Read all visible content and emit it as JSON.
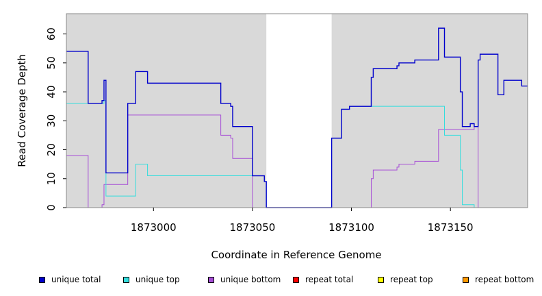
{
  "chart_data": {
    "type": "line",
    "xlabel": "Coordinate in Reference Genome",
    "ylabel": "Read Coverage Depth",
    "xlim": [
      1872956,
      1873189
    ],
    "ylim": [
      0,
      67
    ],
    "xticks": [
      1873000,
      1873050,
      1873100,
      1873150
    ],
    "yticks": [
      0,
      10,
      20,
      30,
      40,
      50,
      60
    ],
    "shaded_regions": [
      [
        1872956,
        1873057
      ],
      [
        1873090,
        1873189
      ]
    ],
    "grid": false,
    "legend_position": "bottom",
    "series": [
      {
        "name": "unique total",
        "color": "#0000cc",
        "steps": [
          [
            1872956,
            54
          ],
          [
            1872967,
            36
          ],
          [
            1872974,
            37
          ],
          [
            1872975,
            44
          ],
          [
            1872976,
            12
          ],
          [
            1872987,
            36
          ],
          [
            1872991,
            47
          ],
          [
            1872997,
            43
          ],
          [
            1873034,
            36
          ],
          [
            1873039,
            35
          ],
          [
            1873040,
            28
          ],
          [
            1873050,
            11
          ],
          [
            1873056,
            9
          ],
          [
            1873057,
            0
          ],
          [
            1873090,
            24
          ],
          [
            1873095,
            34
          ],
          [
            1873099,
            35
          ],
          [
            1873110,
            45
          ],
          [
            1873111,
            48
          ],
          [
            1873123,
            49
          ],
          [
            1873124,
            50
          ],
          [
            1873132,
            51
          ],
          [
            1873144,
            62
          ],
          [
            1873147,
            52
          ],
          [
            1873155,
            40
          ],
          [
            1873156,
            28
          ],
          [
            1873160,
            29
          ],
          [
            1873162,
            28
          ],
          [
            1873164,
            51
          ],
          [
            1873165,
            53
          ],
          [
            1873174,
            39
          ],
          [
            1873177,
            44
          ],
          [
            1873186,
            42
          ],
          [
            1873189,
            42
          ]
        ]
      },
      {
        "name": "unique top",
        "color": "#33dddd",
        "steps": [
          [
            1872956,
            36
          ],
          [
            1872975,
            37
          ],
          [
            1872976,
            4
          ],
          [
            1872991,
            15
          ],
          [
            1872997,
            11
          ],
          [
            1873034,
            11
          ],
          [
            1873050,
            11
          ],
          [
            1873056,
            9
          ],
          [
            1873057,
            0
          ],
          [
            1873090,
            24
          ],
          [
            1873095,
            34
          ],
          [
            1873099,
            35
          ],
          [
            1873147,
            25
          ],
          [
            1873155,
            13
          ],
          [
            1873156,
            1
          ],
          [
            1873162,
            0
          ],
          [
            1873189,
            0
          ]
        ]
      },
      {
        "name": "unique bottom",
        "color": "#a64dd6",
        "steps": [
          [
            1872956,
            18
          ],
          [
            1872967,
            0
          ],
          [
            1872974,
            1
          ],
          [
            1872975,
            8
          ],
          [
            1872987,
            32
          ],
          [
            1873034,
            25
          ],
          [
            1873039,
            24
          ],
          [
            1873040,
            17
          ],
          [
            1873050,
            0
          ],
          [
            1873110,
            10
          ],
          [
            1873111,
            13
          ],
          [
            1873123,
            14
          ],
          [
            1873124,
            15
          ],
          [
            1873132,
            16
          ],
          [
            1873144,
            27
          ],
          [
            1873162,
            28
          ],
          [
            1873164,
            0
          ],
          [
            1873189,
            0
          ]
        ]
      },
      {
        "name": "repeat total",
        "color": "#ff0000",
        "steps": [
          [
            1872956,
            0
          ],
          [
            1873189,
            0
          ]
        ]
      },
      {
        "name": "repeat top",
        "color": "#ffff00",
        "steps": [
          [
            1872956,
            0
          ],
          [
            1873189,
            0
          ]
        ]
      },
      {
        "name": "repeat bottom",
        "color": "#ff9900",
        "steps": [
          [
            1872956,
            0
          ],
          [
            1873189,
            0
          ]
        ]
      }
    ]
  }
}
